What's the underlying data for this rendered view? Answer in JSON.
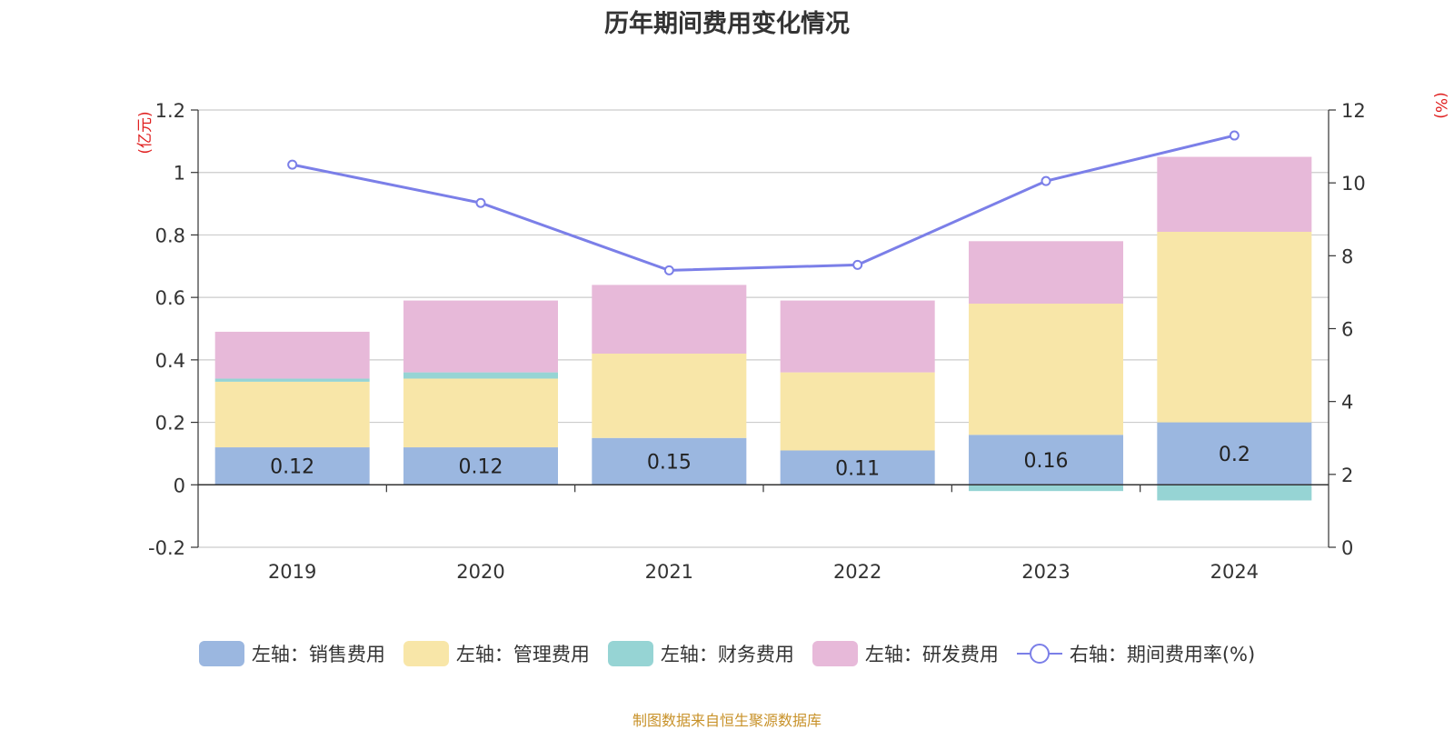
{
  "chart_data": {
    "type": "bar",
    "title": "历年期间费用变化情况",
    "categories": [
      "2019",
      "2020",
      "2021",
      "2022",
      "2023",
      "2024"
    ],
    "left_axis": {
      "unit": "(亿元)",
      "ylim": [
        -0.2,
        1.2
      ],
      "ticks": [
        "-0.2",
        "0",
        "0.2",
        "0.4",
        "0.6",
        "0.8",
        "1",
        "1.2"
      ]
    },
    "right_axis": {
      "unit": "(%)",
      "ylim": [
        0,
        12
      ],
      "ticks": [
        "0",
        "2",
        "4",
        "6",
        "8",
        "10",
        "12"
      ]
    },
    "series": [
      {
        "name": "左轴：销售费用",
        "type": "bar",
        "axis": "left",
        "color": "#9bb7e0",
        "values": [
          0.12,
          0.12,
          0.15,
          0.11,
          0.16,
          0.2
        ],
        "labels": [
          "0.12",
          "0.12",
          "0.15",
          "0.11",
          "0.16",
          "0.2"
        ]
      },
      {
        "name": "左轴：管理费用",
        "type": "bar",
        "axis": "left",
        "color": "#f8e6a8",
        "values": [
          0.21,
          0.22,
          0.27,
          0.25,
          0.42,
          0.61
        ]
      },
      {
        "name": "左轴：财务费用",
        "type": "bar",
        "axis": "left",
        "color": "#96d4d4",
        "values": [
          0.01,
          0.02,
          0.0,
          0.0,
          -0.02,
          -0.05
        ]
      },
      {
        "name": "左轴：研发费用",
        "type": "bar",
        "axis": "left",
        "color": "#e7b9d9",
        "values": [
          0.15,
          0.23,
          0.22,
          0.23,
          0.2,
          0.24
        ]
      },
      {
        "name": "右轴：期间费用率(%)",
        "type": "line",
        "axis": "right",
        "color": "#7b7fe8",
        "values": [
          10.5,
          9.45,
          7.6,
          7.75,
          10.05,
          11.3
        ]
      }
    ],
    "legend_position": "bottom",
    "grid": true
  },
  "source": "制图数据来自恒生聚源数据库"
}
